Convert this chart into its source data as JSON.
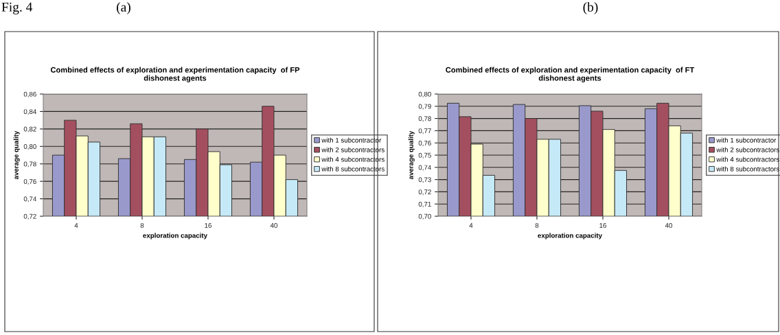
{
  "chart_data": [
    {
      "type": "bar",
      "title": "Combined effects of exploration and experimentation capacity  of FP\ndishonest agents",
      "xlabel": "exploration capacity",
      "ylabel": "average quality",
      "annotations": [
        "Fig. 4",
        "(a)"
      ],
      "categories": [
        "4",
        "8",
        "16",
        "40"
      ],
      "series": [
        {
          "name": "with 1 subcontractor",
          "color": "#9999cc",
          "values": [
            0.79,
            0.786,
            0.785,
            0.782
          ]
        },
        {
          "name": "with 2 subcontractors",
          "color": "#a34f5f",
          "values": [
            0.83,
            0.826,
            0.82,
            0.846
          ]
        },
        {
          "name": "with 4 subcontractors",
          "color": "#ffffcc",
          "values": [
            0.812,
            0.811,
            0.794,
            0.79
          ]
        },
        {
          "name": "with 8 subcontractors",
          "color": "#c6e9f7",
          "values": [
            0.805,
            0.811,
            0.779,
            0.762
          ]
        }
      ],
      "ylim": [
        0.72,
        0.86
      ],
      "yticks": [
        {
          "value": 0.72,
          "label": "0,72"
        },
        {
          "value": 0.74,
          "label": "0,74"
        },
        {
          "value": 0.76,
          "label": "0,76"
        },
        {
          "value": 0.78,
          "label": "0,78"
        },
        {
          "value": 0.8,
          "label": "0,80"
        },
        {
          "value": 0.82,
          "label": "0,82"
        },
        {
          "value": 0.84,
          "label": "0,84"
        },
        {
          "value": 0.86,
          "label": "0,86"
        }
      ],
      "grid": "y",
      "legend": "right"
    },
    {
      "type": "bar",
      "title": "Combined effects of exploration and experimentation capacity  of FT\ndishonest agents",
      "xlabel": "exploration capacity",
      "ylabel": "average quality",
      "annotations": [
        "(b)"
      ],
      "categories": [
        "4",
        "8",
        "16",
        "40"
      ],
      "series": [
        {
          "name": "with 1 subcontractor",
          "color": "#9999cc",
          "values": [
            0.7925,
            0.7915,
            0.7905,
            0.788
          ]
        },
        {
          "name": "with 2 subcontractors",
          "color": "#a34f5f",
          "values": [
            0.7815,
            0.78,
            0.786,
            0.7925
          ]
        },
        {
          "name": "with 4 subcontractors",
          "color": "#ffffcc",
          "values": [
            0.759,
            0.763,
            0.771,
            0.774
          ]
        },
        {
          "name": "with 8 subcontractors",
          "color": "#c6e9f7",
          "values": [
            0.7335,
            0.763,
            0.7375,
            0.768
          ]
        }
      ],
      "ylim": [
        0.7,
        0.8
      ],
      "yticks": [
        {
          "value": 0.7,
          "label": "0,70"
        },
        {
          "value": 0.71,
          "label": "0,71"
        },
        {
          "value": 0.72,
          "label": "0,72"
        },
        {
          "value": 0.73,
          "label": "0,73"
        },
        {
          "value": 0.74,
          "label": "0,74"
        },
        {
          "value": 0.75,
          "label": "0,75"
        },
        {
          "value": 0.76,
          "label": "0,76"
        },
        {
          "value": 0.77,
          "label": "0,77"
        },
        {
          "value": 0.78,
          "label": "0,78"
        },
        {
          "value": 0.79,
          "label": "0,79"
        },
        {
          "value": 0.8,
          "label": "0,80"
        }
      ],
      "grid": "y",
      "legend": "right"
    }
  ]
}
